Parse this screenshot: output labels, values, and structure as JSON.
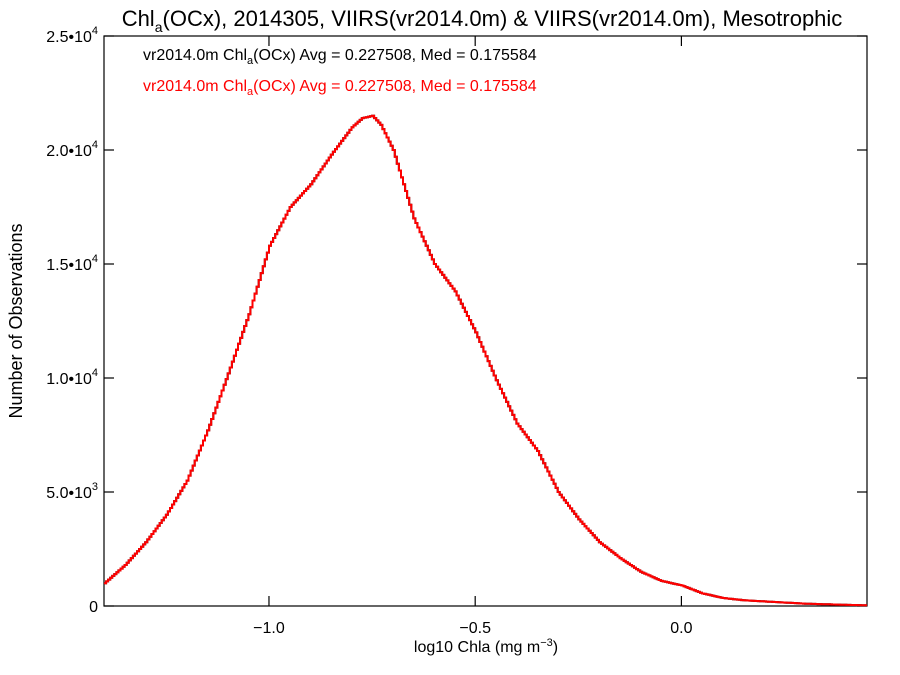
{
  "chart_data": {
    "type": "line",
    "title": {
      "prefix": "Chl",
      "subscript": "a",
      "rest": "(OCx), 2014305, VIIRS(vr2014.0m) & VIIRS(vr2014.0m), Mesotrophic"
    },
    "xlabel": {
      "main": "log10 Chla (mg m",
      "sup": "−3",
      "end": ")"
    },
    "ylabel": "Number of Observations",
    "xlim": [
      -1.4,
      0.45
    ],
    "ylim": [
      0,
      25000
    ],
    "xticks": [
      {
        "value": -1.0,
        "label": "−1.0"
      },
      {
        "value": -0.5,
        "label": "−0.5"
      },
      {
        "value": 0.0,
        "label": "0.0"
      }
    ],
    "yticks": [
      {
        "value": 0,
        "mant": "0",
        "exp": ""
      },
      {
        "value": 5000,
        "mant": "5.0•10",
        "exp": "3"
      },
      {
        "value": 10000,
        "mant": "1.0•10",
        "exp": "4"
      },
      {
        "value": 15000,
        "mant": "1.5•10",
        "exp": "4"
      },
      {
        "value": 20000,
        "mant": "2.0•10",
        "exp": "4"
      },
      {
        "value": 25000,
        "mant": "2.5•10",
        "exp": "4"
      }
    ],
    "legend": [
      {
        "pre": "vr2014.0m Chl",
        "sub": "a",
        "post": "(OCx) Avg = 0.227508, Med = 0.175584",
        "color": "#000000"
      },
      {
        "pre": "vr2014.0m Chl",
        "sub": "a",
        "post": "(OCx) Avg = 0.227508, Med = 0.175584",
        "color": "#ff0000"
      }
    ],
    "legend_position": "top-left",
    "grid": false,
    "series": [
      {
        "color": "#000000",
        "x": [
          -1.4,
          -1.35,
          -1.3,
          -1.25,
          -1.2,
          -1.15,
          -1.1,
          -1.05,
          -1.0,
          -0.95,
          -0.9,
          -0.85,
          -0.8,
          -0.775,
          -0.75,
          -0.73,
          -0.7,
          -0.65,
          -0.6,
          -0.55,
          -0.5,
          -0.45,
          -0.4,
          -0.35,
          -0.3,
          -0.25,
          -0.2,
          -0.15,
          -0.1,
          -0.05,
          0.0,
          0.05,
          0.1,
          0.15,
          0.2,
          0.3,
          0.4,
          0.45
        ],
        "y": [
          1000,
          1800,
          2800,
          4000,
          5500,
          7700,
          10200,
          12800,
          15800,
          17500,
          18500,
          19800,
          21000,
          21400,
          21500,
          21100,
          20000,
          17000,
          15000,
          13800,
          12000,
          9900,
          8000,
          6800,
          5000,
          3800,
          2800,
          2100,
          1500,
          1100,
          900,
          550,
          350,
          250,
          200,
          100,
          50,
          30
        ]
      },
      {
        "color": "#ff0000",
        "x": [
          -1.4,
          -1.35,
          -1.3,
          -1.25,
          -1.2,
          -1.15,
          -1.1,
          -1.05,
          -1.0,
          -0.95,
          -0.9,
          -0.85,
          -0.8,
          -0.775,
          -0.75,
          -0.73,
          -0.7,
          -0.65,
          -0.6,
          -0.55,
          -0.5,
          -0.45,
          -0.4,
          -0.35,
          -0.3,
          -0.25,
          -0.2,
          -0.15,
          -0.1,
          -0.05,
          0.0,
          0.05,
          0.1,
          0.15,
          0.2,
          0.3,
          0.4,
          0.45
        ],
        "y": [
          1000,
          1800,
          2800,
          4000,
          5500,
          7700,
          10200,
          12800,
          15800,
          17500,
          18500,
          19800,
          21000,
          21400,
          21500,
          21100,
          20000,
          17000,
          15000,
          13800,
          12000,
          9900,
          8000,
          6800,
          5000,
          3800,
          2800,
          2100,
          1500,
          1100,
          900,
          550,
          350,
          250,
          200,
          100,
          50,
          30
        ]
      }
    ]
  }
}
